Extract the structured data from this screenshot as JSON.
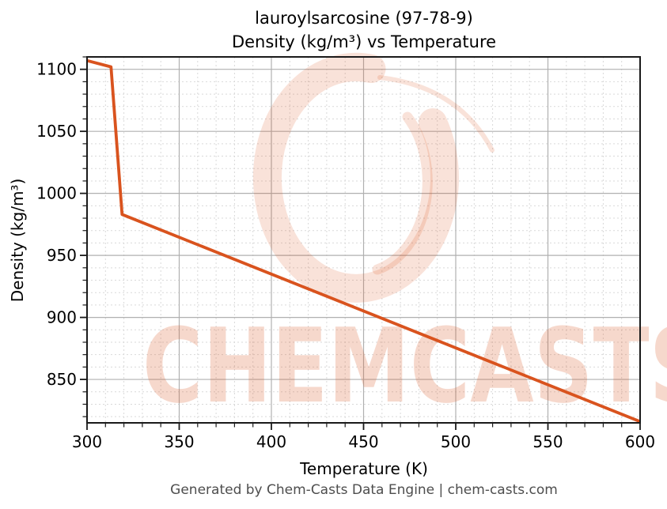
{
  "title": {
    "line1": "lauroylsarcosine (97-78-9)",
    "line2": "Density (kg/m³) vs Temperature"
  },
  "watermark": {
    "text": "CHEMCASTS",
    "color": "#d9531e",
    "text_opacity": 0.22,
    "ring_opacity": 0.17
  },
  "footer": {
    "text": "Generated by Chem-Casts Data Engine | chem-casts.com",
    "color": "#4d4d4d"
  },
  "chart_data": {
    "type": "line",
    "title": "lauroylsarcosine (97-78-9) Density (kg/m³) vs Temperature",
    "xlabel": "Temperature (K)",
    "ylabel": "Density (kg/m³)",
    "xlim": [
      300,
      600
    ],
    "ylim": [
      815,
      1110
    ],
    "x_ticks_major": [
      300,
      350,
      400,
      450,
      500,
      550,
      600
    ],
    "y_ticks_major": [
      850,
      900,
      950,
      1000,
      1050,
      1100
    ],
    "minor_tick_step_x": 10,
    "minor_tick_step_y": 10,
    "grid": {
      "major": "solid",
      "minor": "dashed"
    },
    "legend_position": "none",
    "line_color": "#d9531e",
    "line_width": 3.8,
    "axis_color": "#1a1a1a",
    "major_grid_color": "#b0b0b0",
    "minor_grid_color": "#d9d9d9",
    "series": [
      {
        "name": "Density",
        "points": [
          [
            300,
            1107
          ],
          [
            313,
            1102
          ],
          [
            319,
            983
          ],
          [
            600,
            816
          ]
        ]
      }
    ]
  }
}
